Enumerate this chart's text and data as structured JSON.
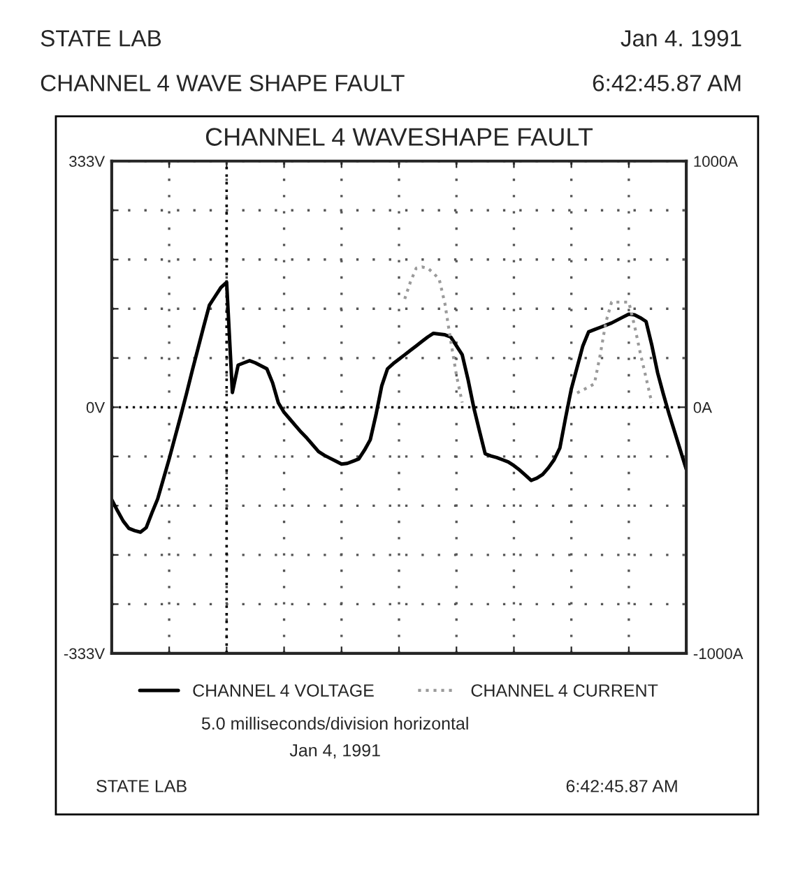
{
  "chart_data": {
    "type": "line",
    "title": "CHANNEL 4 WAVESHAPE FAULT",
    "categories": [
      null,
      null,
      null,
      null,
      null,
      null,
      null,
      null,
      null,
      null,
      null,
      null,
      null,
      null,
      null,
      null,
      null,
      null,
      null,
      null,
      null,
      null,
      null,
      null,
      null,
      null,
      null,
      null,
      null,
      null,
      null,
      null,
      null,
      null,
      null,
      null,
      null,
      null,
      null,
      null,
      null,
      null,
      null,
      null,
      null,
      null,
      null,
      null,
      null,
      null,
      null,
      null,
      null,
      null,
      null,
      null,
      null,
      null,
      null,
      null,
      null,
      null,
      null,
      null,
      null,
      null,
      null,
      null,
      null,
      null,
      null,
      null,
      null,
      null,
      null,
      null,
      null,
      null,
      null,
      null,
      null,
      null,
      null,
      null,
      null,
      null,
      null,
      null,
      null,
      null,
      null,
      null,
      null,
      null,
      null,
      null,
      null,
      null,
      null,
      null,
      null
    ],
    "series": [
      {
        "name": "CHANNEL 4 VOLTAGE",
        "color": "#000000",
        "line_style": "solid",
        "values": [
          -125,
          -140,
          -154,
          -164,
          -167,
          -169,
          -163,
          -143,
          -124,
          -97,
          -70,
          -41,
          -12,
          18,
          49,
          79,
          109,
          138,
          150,
          162,
          169,
          20,
          57,
          60,
          63,
          60,
          56,
          52,
          33,
          6,
          -7,
          -16,
          -25,
          -34,
          -42,
          -51,
          -60,
          -65,
          -69,
          -73,
          -77,
          -76,
          -73,
          -70,
          -58,
          -44,
          -10,
          29,
          52,
          59,
          65,
          71,
          77,
          83,
          89,
          95,
          100,
          99,
          98,
          95,
          83,
          71,
          38,
          0,
          -32,
          -63,
          -66,
          -68,
          -71,
          -74,
          -79,
          -85,
          -92,
          -99,
          -96,
          -91,
          -82,
          -71,
          -55,
          -14,
          25,
          54,
          83,
          102,
          105,
          108,
          111,
          114,
          118,
          122,
          126,
          125,
          121,
          116,
          84,
          47,
          18,
          -9,
          -34,
          -59,
          -84
        ]
      },
      {
        "name": "CHANNEL 4 CURRENT",
        "color": "#9a9a9a",
        "line_style": "dotted",
        "axis": "y2",
        "values": [
          null,
          null,
          null,
          null,
          null,
          null,
          null,
          null,
          null,
          null,
          null,
          null,
          null,
          null,
          null,
          null,
          null,
          null,
          null,
          null,
          null,
          null,
          null,
          null,
          null,
          null,
          null,
          null,
          null,
          null,
          null,
          null,
          null,
          null,
          null,
          null,
          null,
          null,
          null,
          null,
          null,
          null,
          null,
          null,
          null,
          null,
          null,
          null,
          null,
          null,
          null,
          440,
          510,
          565,
          570,
          565,
          545,
          520,
          420,
          270,
          130,
          19,
          null,
          null,
          null,
          null,
          null,
          null,
          null,
          null,
          null,
          null,
          null,
          null,
          null,
          null,
          null,
          null,
          null,
          null,
          null,
          58,
          70,
          82,
          95,
          210,
          345,
          427,
          427,
          427,
          427,
          330,
          220,
          120,
          17,
          null,
          null,
          null,
          null,
          null,
          null
        ]
      }
    ],
    "ylim": [
      -333,
      333
    ],
    "yticks": [
      {
        "value": -333,
        "label": "-333V"
      },
      {
        "value": -266.4,
        "label": null
      },
      {
        "value": -199.8,
        "label": null
      },
      {
        "value": -133.2,
        "label": null
      },
      {
        "value": -66.6,
        "label": null
      },
      {
        "value": 0,
        "label": "0V"
      },
      {
        "value": 66.6,
        "label": null
      },
      {
        "value": 133.2,
        "label": null
      },
      {
        "value": 199.8,
        "label": null
      },
      {
        "value": 266.4,
        "label": null
      },
      {
        "value": 333,
        "label": "333V"
      }
    ],
    "y2lim": [
      -1000,
      1000
    ],
    "y2ticks": [
      {
        "value": -1000,
        "label": "-1000A"
      },
      {
        "value": 0,
        "label": "0A"
      },
      {
        "value": 1000,
        "label": "1000A"
      }
    ],
    "grid": true,
    "legend": "bottom",
    "annotations": [
      "STATE LAB",
      "Jan 4. 1991",
      "CHANNEL 4 WAVE SHAPE FAULT",
      "6:42:45.87 AM",
      "5.0 milliseconds/division horizontal",
      "Jan 4, 1991",
      "STATE LAB",
      "6:42:45.87 AM"
    ]
  }
}
